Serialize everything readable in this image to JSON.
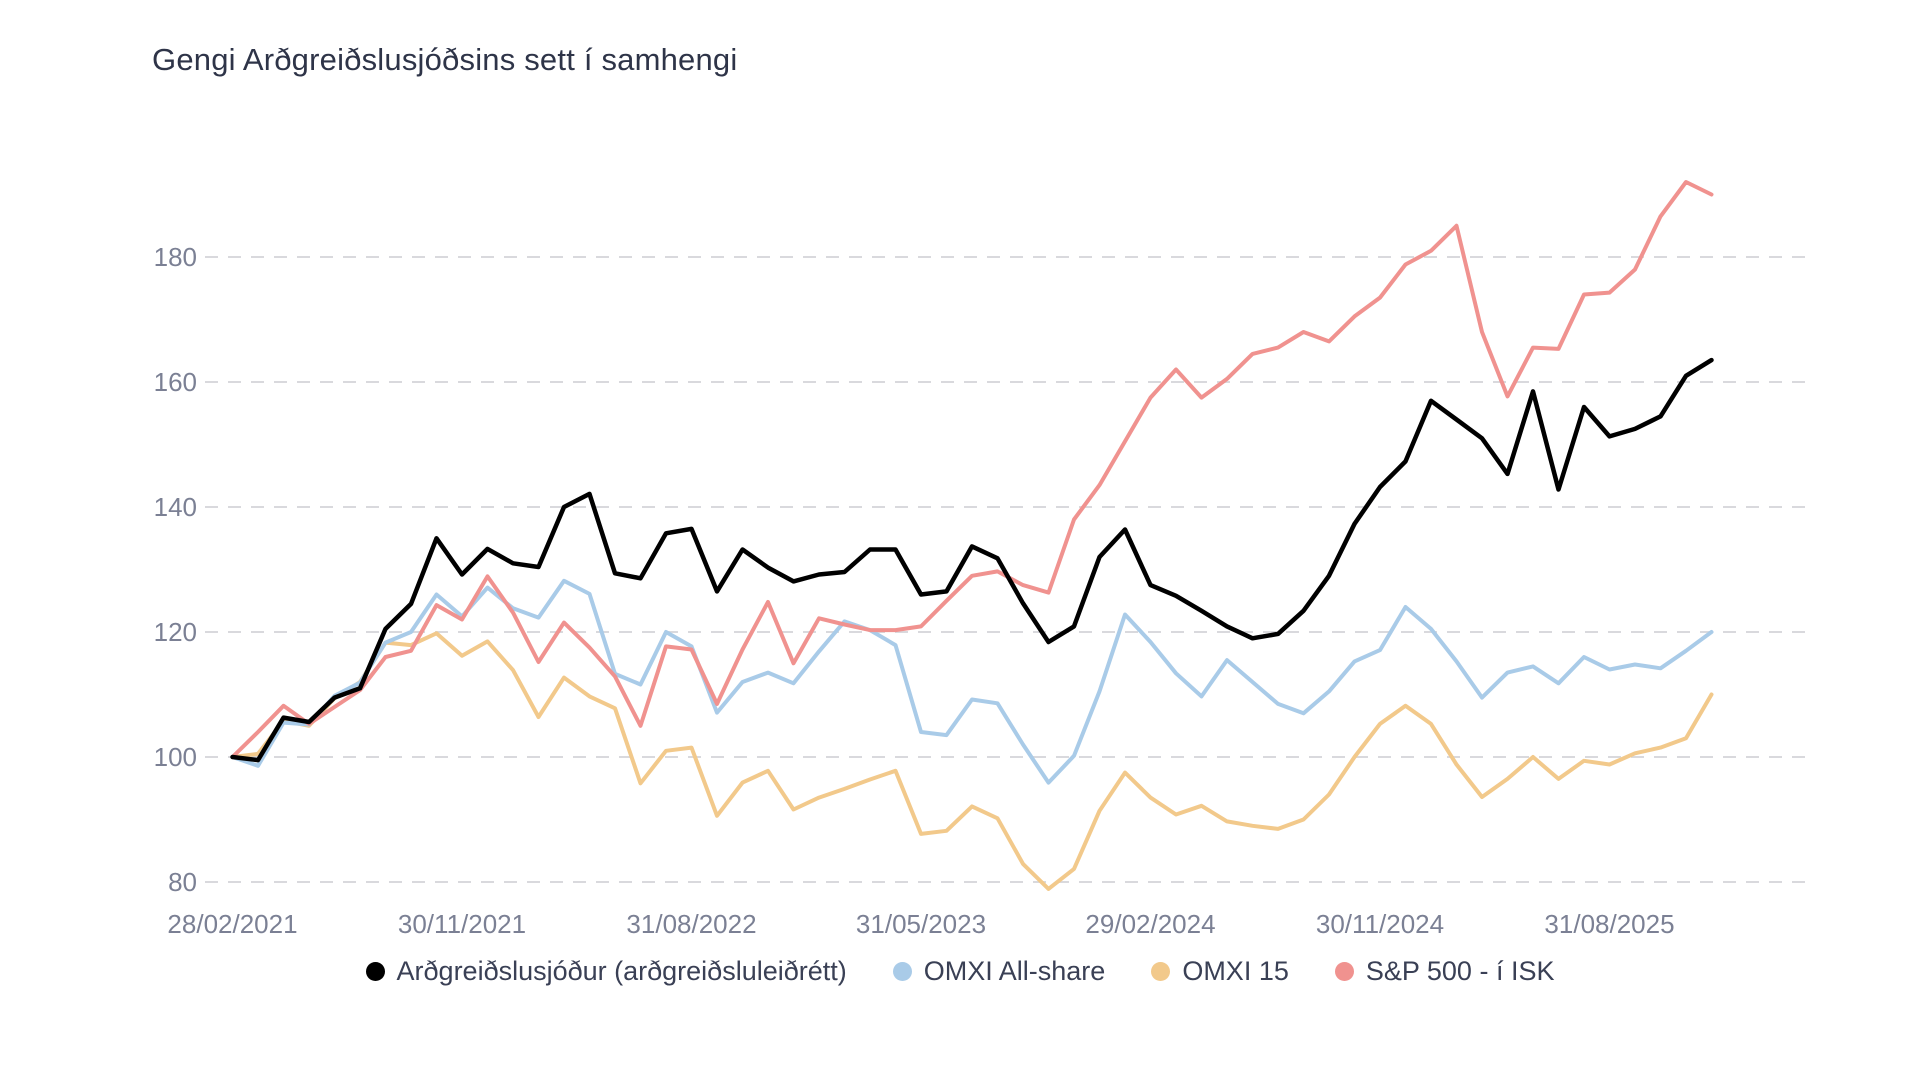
{
  "page": {
    "background": "#ffffff"
  },
  "chart_data": {
    "type": "line",
    "title": "Gengi Arðgreiðslusjóðsins sett í samhengi",
    "title_color": "#2e3448",
    "grid": {
      "on": true,
      "color": "#d9d9dd",
      "dashed": true
    },
    "legend": {
      "position": "bottom",
      "marker": "circle",
      "text_color": "#3a4055"
    },
    "y_axis": {
      "ticks": [
        80,
        100,
        120,
        140,
        160,
        180
      ],
      "tick_label_color": "#7b8094"
    },
    "x_axis": {
      "tick_indices": [
        0,
        9,
        18,
        27,
        36,
        45,
        54
      ],
      "tick_label_color": "#7b8094"
    },
    "ylim": [
      74,
      200
    ],
    "categories": [
      "28/02/2021",
      "31/03/2021",
      "30/04/2021",
      "31/05/2021",
      "30/06/2021",
      "31/07/2021",
      "31/08/2021",
      "30/09/2021",
      "31/10/2021",
      "30/11/2021",
      "31/12/2021",
      "31/01/2022",
      "28/02/2022",
      "31/03/2022",
      "30/04/2022",
      "31/05/2022",
      "30/06/2022",
      "31/07/2022",
      "31/08/2022",
      "30/09/2022",
      "31/10/2022",
      "30/11/2022",
      "31/12/2022",
      "31/01/2023",
      "28/02/2023",
      "31/03/2023",
      "30/04/2023",
      "31/05/2023",
      "30/06/2023",
      "31/07/2023",
      "31/08/2023",
      "30/09/2023",
      "31/10/2023",
      "30/11/2023",
      "31/12/2023",
      "31/01/2024",
      "29/02/2024",
      "31/03/2024",
      "30/04/2024",
      "31/05/2024",
      "30/06/2024",
      "31/07/2024",
      "31/08/2024",
      "30/09/2024",
      "31/10/2024",
      "30/11/2024",
      "31/12/2024",
      "31/01/2025",
      "28/02/2025",
      "31/03/2025",
      "30/04/2025",
      "31/05/2025",
      "30/06/2025",
      "31/07/2025",
      "31/08/2025",
      "30/09/2025",
      "31/10/2025",
      "30/11/2025",
      "31/12/2025"
    ],
    "draw_order": [
      2,
      1,
      3,
      0
    ],
    "series": [
      {
        "name": "Arðgreiðslusjóður (arðgreiðsluleiðrétt)",
        "color": "#000000",
        "width": 4.5,
        "values": [
          100,
          99.5,
          106.3,
          105.6,
          109.5,
          111.0,
          120.5,
          124.5,
          135.0,
          129.2,
          133.3,
          131.0,
          130.4,
          140.0,
          142.1,
          129.4,
          128.6,
          135.8,
          136.5,
          126.5,
          133.2,
          130.3,
          128.1,
          129.2,
          129.6,
          133.2,
          133.2,
          126.0,
          126.5,
          133.7,
          131.8,
          124.6,
          118.4,
          120.9,
          132.0,
          136.4,
          127.5,
          125.8,
          123.4,
          120.9,
          119.0,
          119.7,
          123.4,
          129.0,
          137.3,
          143.2,
          147.3,
          157.0,
          154.0,
          151.0,
          145.3,
          158.5,
          142.8,
          156.0,
          151.3,
          152.5,
          154.5,
          161.0,
          163.5
        ]
      },
      {
        "name": "OMXI All-share",
        "color": "#a9cbe8",
        "width": 4,
        "values": [
          100,
          98.6,
          105.5,
          105.2,
          109.8,
          111.9,
          118.3,
          120.0,
          126.0,
          122.5,
          127.1,
          123.8,
          122.3,
          128.2,
          126.1,
          113.3,
          111.6,
          120.0,
          117.7,
          107.1,
          112.0,
          113.5,
          111.8,
          116.9,
          121.7,
          120.3,
          117.9,
          104.0,
          103.5,
          109.2,
          108.6,
          102.0,
          95.9,
          100.2,
          110.5,
          122.8,
          118.4,
          113.4,
          109.7,
          115.5,
          112.0,
          108.5,
          107.0,
          110.5,
          115.3,
          117.1,
          124.0,
          120.5,
          115.3,
          109.5,
          113.5,
          114.5,
          111.8,
          116.0,
          114.0,
          114.8,
          114.2,
          117.0,
          120.0
        ]
      },
      {
        "name": "OMXI 15",
        "color": "#f2c98b",
        "width": 4,
        "values": [
          100,
          100.5,
          105.8,
          105.0,
          109.4,
          112.0,
          118.3,
          117.9,
          119.8,
          116.2,
          118.5,
          113.9,
          106.4,
          112.7,
          109.7,
          107.8,
          95.8,
          101.0,
          101.5,
          90.6,
          95.9,
          97.8,
          91.6,
          93.5,
          94.9,
          96.4,
          97.8,
          87.7,
          88.2,
          92.1,
          90.2,
          82.9,
          78.9,
          82.1,
          91.4,
          97.5,
          93.5,
          90.8,
          92.2,
          89.7,
          89.0,
          88.5,
          90.0,
          94.0,
          100.0,
          105.3,
          108.2,
          105.3,
          98.8,
          93.6,
          96.5,
          100.0,
          96.5,
          99.4,
          98.8,
          100.6,
          101.5,
          103.0,
          110.0
        ]
      },
      {
        "name": "S&P 500 - í ISK",
        "color": "#f0928f",
        "width": 4,
        "values": [
          100,
          104.0,
          108.2,
          105.3,
          108.0,
          110.7,
          116.0,
          117.0,
          124.3,
          122.0,
          128.9,
          123.1,
          115.2,
          121.5,
          117.5,
          112.9,
          105.0,
          117.7,
          117.2,
          108.5,
          117.2,
          124.8,
          115.0,
          122.2,
          121.2,
          120.3,
          120.3,
          120.9,
          125.0,
          129.0,
          129.7,
          127.5,
          126.3,
          138.0,
          143.5,
          150.5,
          157.5,
          162.0,
          157.5,
          160.5,
          164.5,
          165.5,
          168.0,
          166.5,
          170.5,
          173.5,
          178.8,
          181.0,
          185.0,
          168.0,
          157.7,
          165.5,
          165.3,
          174.0,
          174.3,
          178.0,
          186.5,
          192.0,
          190.0
        ]
      }
    ]
  }
}
